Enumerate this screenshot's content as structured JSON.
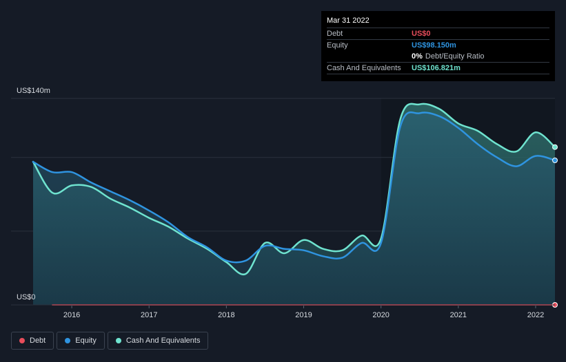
{
  "colors": {
    "background": "#151b26",
    "debt": "#e84d5b",
    "equity": "#2f94e0",
    "cash": "#6fe3cf",
    "grid": "#2b323d",
    "text": "#d7dbe0"
  },
  "tooltip": {
    "date": "Mar 31 2022",
    "debt_label": "Debt",
    "debt_value": "US$0",
    "equity_label": "Equity",
    "equity_value": "US$98.150m",
    "ratio_value": "0%",
    "ratio_label": "Debt/Equity Ratio",
    "cash_label": "Cash And Equivalents",
    "cash_value": "US$106.821m"
  },
  "legend": {
    "debt": "Debt",
    "equity": "Equity",
    "cash": "Cash And Equivalents"
  },
  "chart_data": {
    "type": "area",
    "title": "",
    "xlabel": "",
    "ylabel": "",
    "ylim": [
      0,
      140
    ],
    "y_axis_labels": [
      "US$140m",
      "US$0"
    ],
    "x_ticks": [
      2016,
      2017,
      2018,
      2019,
      2020,
      2021,
      2022
    ],
    "x_tick_labels": [
      "2016",
      "2017",
      "2018",
      "2019",
      "2020",
      "2021",
      "2022"
    ],
    "xlim": [
      2015.5,
      2022.25
    ],
    "series": [
      {
        "name": "Debt",
        "color": "#e84d5b",
        "x": [
          2015.75,
          2022.25
        ],
        "values": [
          0,
          0
        ]
      },
      {
        "name": "Equity",
        "color": "#2f94e0",
        "x": [
          2015.5,
          2015.75,
          2016.0,
          2016.25,
          2016.5,
          2016.75,
          2017.0,
          2017.25,
          2017.5,
          2017.75,
          2018.0,
          2018.25,
          2018.5,
          2018.75,
          2019.0,
          2019.25,
          2019.5,
          2019.75,
          2020.0,
          2020.25,
          2020.5,
          2020.75,
          2021.0,
          2021.25,
          2021.5,
          2021.75,
          2022.0,
          2022.25
        ],
        "values": [
          97,
          90,
          90,
          83,
          77,
          71,
          64,
          56,
          46,
          39,
          30,
          30,
          40,
          38,
          37,
          33,
          32,
          42,
          42,
          121,
          130,
          128,
          120,
          109,
          100,
          94,
          101,
          98
        ]
      },
      {
        "name": "Cash And Equivalents",
        "color": "#6fe3cf",
        "x": [
          2015.5,
          2015.75,
          2016.0,
          2016.25,
          2016.5,
          2016.75,
          2017.0,
          2017.25,
          2017.5,
          2017.75,
          2018.0,
          2018.25,
          2018.5,
          2018.75,
          2019.0,
          2019.25,
          2019.5,
          2019.75,
          2020.0,
          2020.25,
          2020.5,
          2020.75,
          2021.0,
          2021.25,
          2021.5,
          2021.75,
          2022.0,
          2022.25
        ],
        "values": [
          97,
          76,
          81,
          80,
          72,
          66,
          59,
          53,
          45,
          38,
          29,
          21,
          42,
          35,
          44,
          38,
          37,
          47,
          45,
          126,
          136,
          133,
          123,
          118,
          109,
          104,
          117,
          107
        ]
      }
    ],
    "end_values": {
      "debt": 0,
      "equity": 98.15,
      "cash": 106.821
    }
  }
}
